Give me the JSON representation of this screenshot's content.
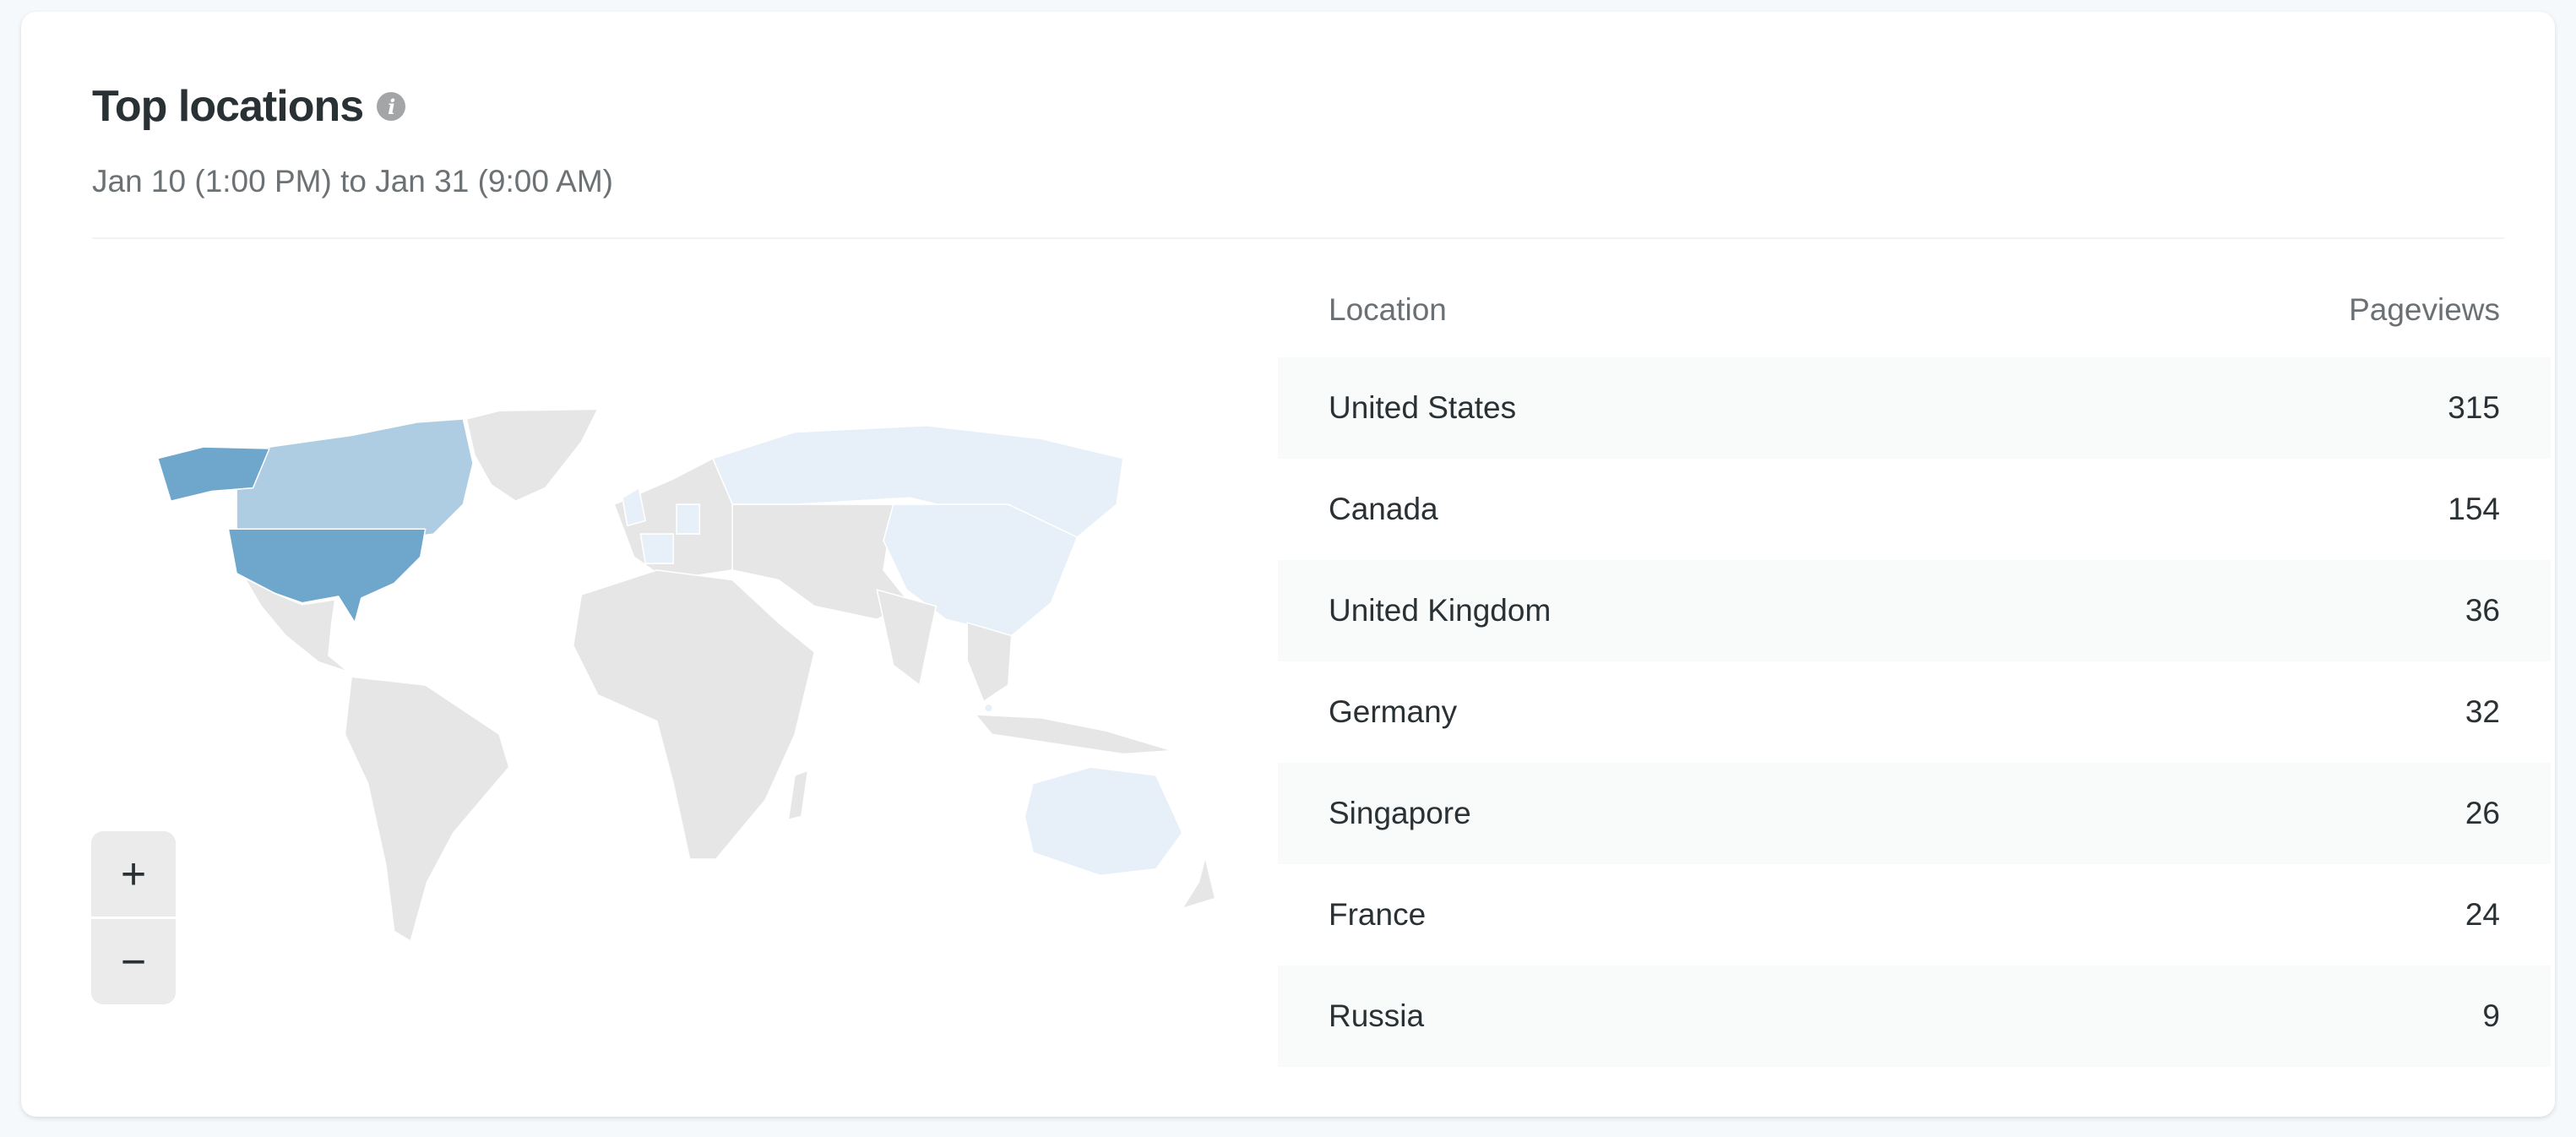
{
  "card": {
    "title": "Top locations",
    "info_icon": "info-icon",
    "info_glyph": "i",
    "subtitle": "Jan 10 (1:00 PM) to Jan 31 (9:00 AM)"
  },
  "table": {
    "headers": {
      "location": "Location",
      "pageviews": "Pageviews"
    },
    "rows": [
      {
        "location": "United States",
        "pageviews": "315"
      },
      {
        "location": "Canada",
        "pageviews": "154"
      },
      {
        "location": "United Kingdom",
        "pageviews": "36"
      },
      {
        "location": "Germany",
        "pageviews": "32"
      },
      {
        "location": "Singapore",
        "pageviews": "26"
      },
      {
        "location": "France",
        "pageviews": "24"
      },
      {
        "location": "Russia",
        "pageviews": "9"
      }
    ]
  },
  "map": {
    "zoom_in": "+",
    "zoom_out": "−",
    "colors": {
      "high": "#6fa6cc",
      "mid": "#aecde3",
      "low": "#e7f0f8",
      "none": "#e6e6e7"
    }
  }
}
